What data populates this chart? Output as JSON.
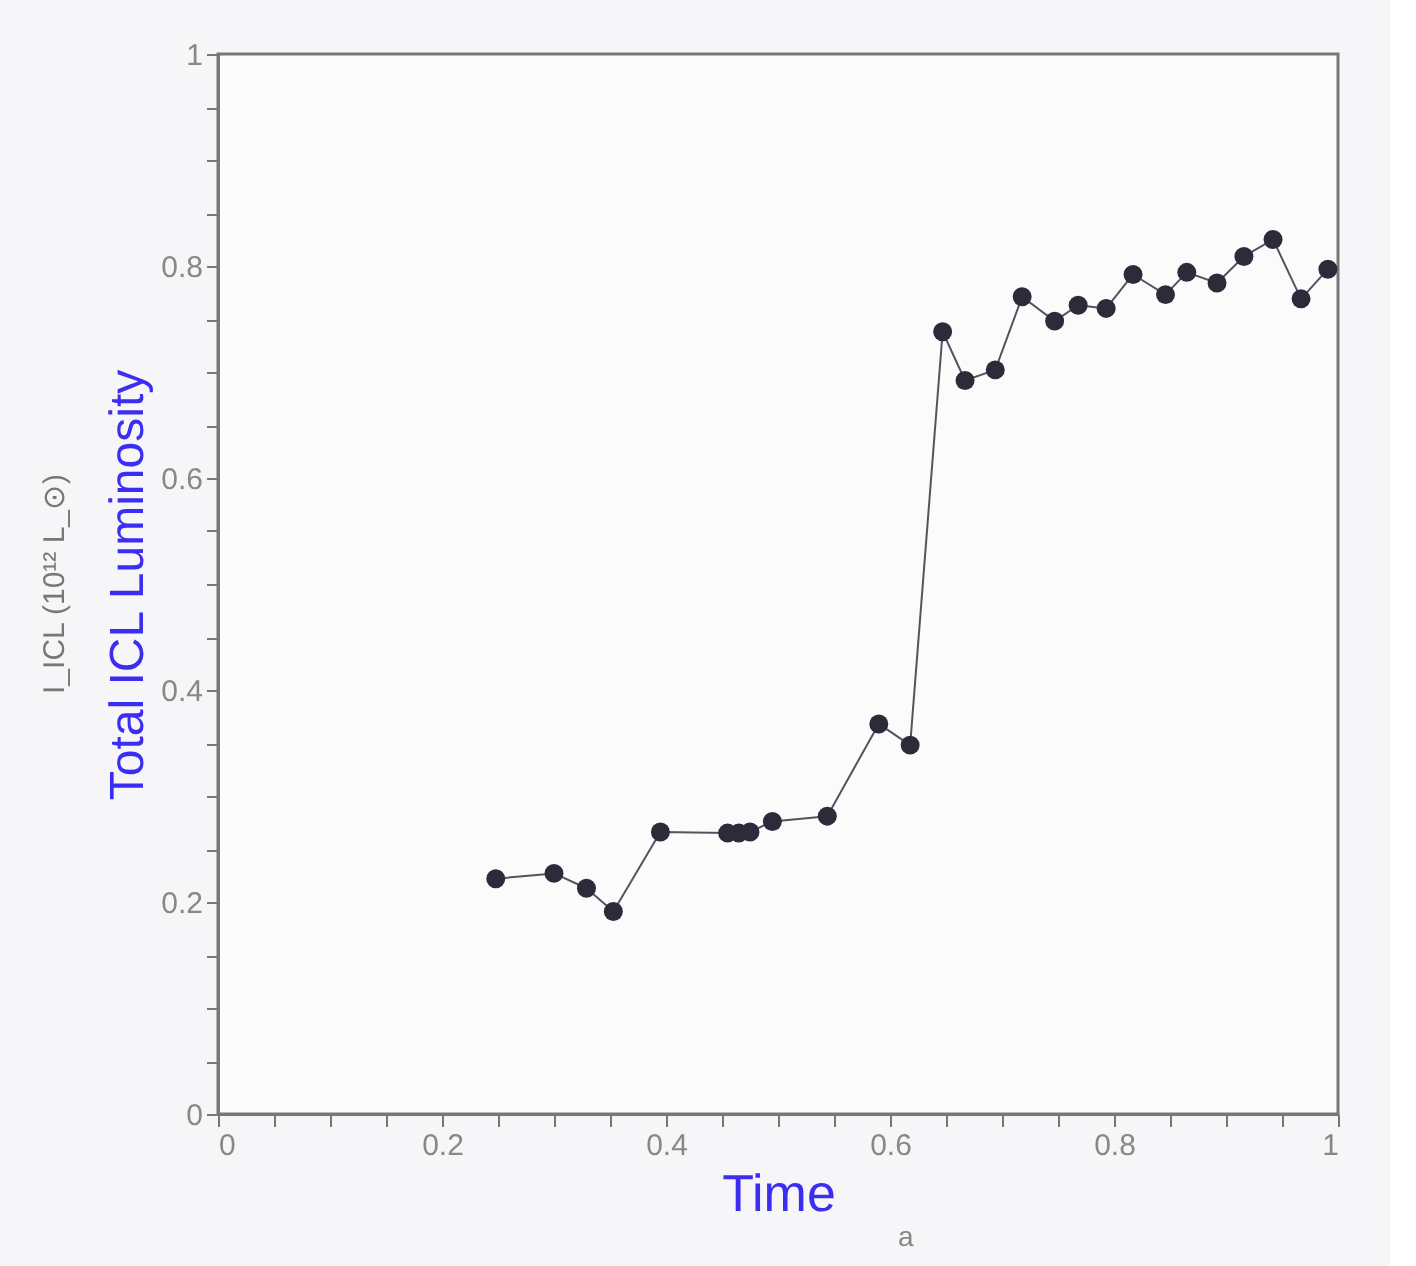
{
  "chart_data": {
    "type": "line",
    "xlabel": "Time",
    "ylabel": "Total ICL Luminosity",
    "annotations": [
      "a",
      "I_ICL (10¹² L_⊙)"
    ],
    "x": [
      0.248,
      0.3,
      0.329,
      0.353,
      0.395,
      0.455,
      0.465,
      0.475,
      0.495,
      0.544,
      0.59,
      0.618,
      0.647,
      0.667,
      0.694,
      0.718,
      0.747,
      0.768,
      0.793,
      0.817,
      0.846,
      0.865,
      0.892,
      0.916,
      0.942,
      0.967,
      0.991
    ],
    "series": [
      {
        "color": "#2b2b3a",
        "values": [
          0.222,
          0.227,
          0.213,
          0.191,
          0.266,
          0.265,
          0.265,
          0.266,
          0.276,
          0.281,
          0.368,
          0.348,
          0.738,
          0.692,
          0.702,
          0.771,
          0.748,
          0.763,
          0.76,
          0.792,
          0.773,
          0.794,
          0.784,
          0.809,
          0.825,
          0.769,
          0.797
        ]
      }
    ],
    "xlim": [
      0,
      1
    ],
    "ylim": [
      0,
      1
    ],
    "xticks": [
      0,
      {
        "value": 0.05,
        "label": null
      },
      {
        "value": 0.1,
        "label": null
      },
      {
        "value": 0.15,
        "label": null
      },
      0.2,
      {
        "value": 0.25,
        "label": null
      },
      {
        "value": 0.3,
        "label": null
      },
      {
        "value": 0.35,
        "label": null
      },
      0.4,
      {
        "value": 0.45,
        "label": null
      },
      {
        "value": 0.5,
        "label": null
      },
      {
        "value": 0.55,
        "label": null
      },
      0.6,
      {
        "value": 0.65,
        "label": null
      },
      {
        "value": 0.7,
        "label": null
      },
      {
        "value": 0.75,
        "label": null
      },
      0.8,
      {
        "value": 0.85,
        "label": null
      },
      {
        "value": 0.9,
        "label": null
      },
      {
        "value": 0.95,
        "label": null
      },
      1
    ],
    "yticks": [
      0,
      {
        "value": 0.05,
        "label": null
      },
      {
        "value": 0.1,
        "label": null
      },
      {
        "value": 0.15,
        "label": null
      },
      0.2,
      {
        "value": 0.25,
        "label": null
      },
      {
        "value": 0.3,
        "label": null
      },
      {
        "value": 0.35,
        "label": null
      },
      0.4,
      {
        "value": 0.45,
        "label": null
      },
      {
        "value": 0.5,
        "label": null
      },
      {
        "value": 0.55,
        "label": null
      },
      0.6,
      {
        "value": 0.65,
        "label": null
      },
      {
        "value": 0.7,
        "label": null
      },
      {
        "value": 0.75,
        "label": null
      },
      0.8,
      {
        "value": 0.85,
        "label": null
      },
      {
        "value": 0.9,
        "label": null
      },
      {
        "value": 0.95,
        "label": null
      },
      1
    ],
    "grid": false,
    "marker": "circle",
    "line_style": "solid"
  }
}
